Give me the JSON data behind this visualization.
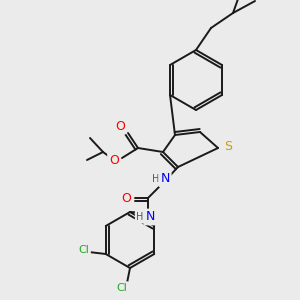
{
  "background_color": "#ebebeb",
  "bond_color": "#1a1a1a",
  "atom_colors": {
    "S": "#c8a000",
    "O": "#ff0000",
    "N": "#0000ee",
    "Cl": "#22aa22",
    "H": "#555555"
  },
  "figsize": [
    3.0,
    3.0
  ],
  "dpi": 100
}
